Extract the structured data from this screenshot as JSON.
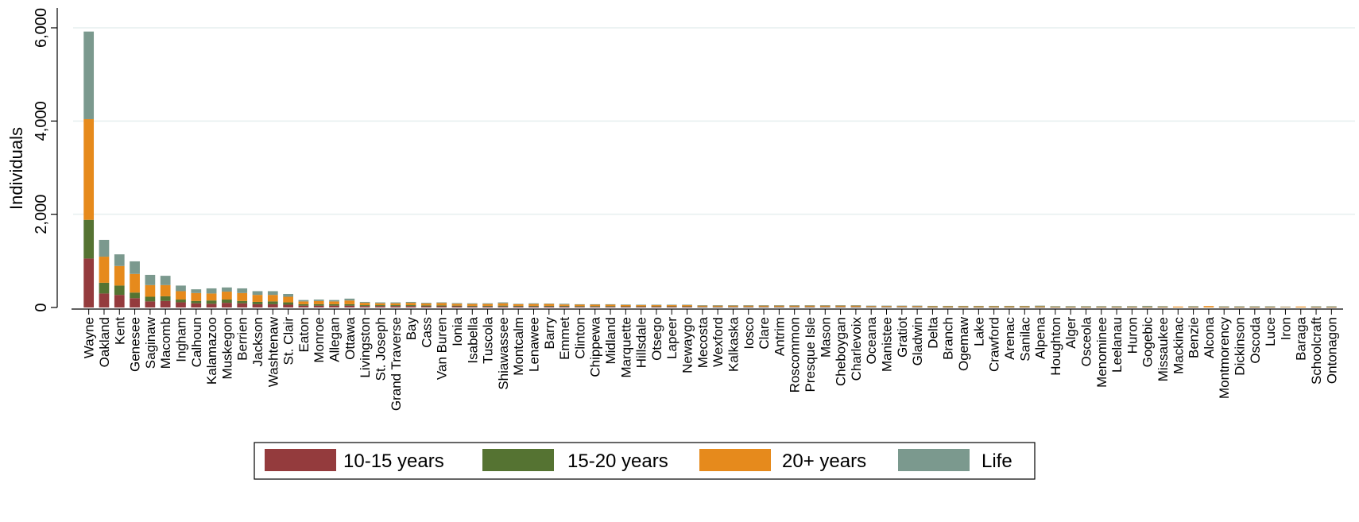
{
  "chart_data": {
    "type": "bar",
    "stacked": true,
    "title": "",
    "xlabel": "",
    "ylabel": "Individuals",
    "ylim": [
      0,
      6000
    ],
    "yticks": [
      0,
      2000,
      4000,
      6000
    ],
    "ytick_labels": [
      "0",
      "2,000",
      "4,000",
      "6,000"
    ],
    "grid": true,
    "legend_position": "bottom",
    "categories": [
      "Wayne",
      "Oakland",
      "Kent",
      "Genesee",
      "Saginaw",
      "Macomb",
      "Ingham",
      "Calhoun",
      "Kalamazoo",
      "Muskegon",
      "Berrien",
      "Jackson",
      "Washtenaw",
      "St. Clair",
      "Eaton",
      "Monroe",
      "Allegan",
      "Ottawa",
      "Livingston",
      "St. Joseph",
      "Grand Traverse",
      "Bay",
      "Cass",
      "Van Buren",
      "Ionia",
      "Isabella",
      "Tuscola",
      "Shiawassee",
      "Montcalm",
      "Lenawee",
      "Barry",
      "Emmet",
      "Clinton",
      "Chippewa",
      "Midland",
      "Marquette",
      "Hillsdale",
      "Otsego",
      "Lapeer",
      "Newaygo",
      "Mecosta",
      "Wexford",
      "Kalkaska",
      "Iosco",
      "Clare",
      "Antrim",
      "Roscommon",
      "Presque Isle",
      "Mason",
      "Cheboygan",
      "Charlevoix",
      "Oceana",
      "Manistee",
      "Gratiot",
      "Gladwin",
      "Delta",
      "Branch",
      "Ogemaw",
      "Lake",
      "Crawford",
      "Arenac",
      "Sanilac",
      "Alpena",
      "Houghton",
      "Alger",
      "Osceola",
      "Menominee",
      "Leelanau",
      "Huron",
      "Gogebic",
      "Missaukee",
      "Mackinac",
      "Benzie",
      "Alcona",
      "Montmorency",
      "Dickinson",
      "Oscoda",
      "Luce",
      "Iron",
      "Baraga",
      "Schoolcraft",
      "Ontonagon"
    ],
    "series": [
      {
        "name": "10-15 years",
        "color": "#943b3d",
        "values": [
          1050,
          300,
          270,
          200,
          130,
          140,
          110,
          90,
          80,
          100,
          90,
          70,
          70,
          60,
          40,
          40,
          40,
          40,
          30,
          30,
          30,
          30,
          25,
          25,
          25,
          20,
          20,
          20,
          20,
          20,
          20,
          20,
          15,
          15,
          15,
          15,
          15,
          15,
          15,
          15,
          10,
          10,
          10,
          10,
          10,
          10,
          10,
          10,
          10,
          10,
          10,
          10,
          10,
          10,
          10,
          5,
          5,
          5,
          5,
          5,
          5,
          5,
          5,
          5,
          5,
          5,
          5,
          5,
          5,
          5,
          5,
          0,
          5,
          0,
          5,
          5,
          5,
          5,
          0,
          0,
          5,
          5
        ]
      },
      {
        "name": "15-20 years",
        "color": "#557332",
        "values": [
          830,
          230,
          200,
          120,
          100,
          100,
          60,
          50,
          70,
          70,
          50,
          50,
          60,
          50,
          30,
          30,
          30,
          30,
          20,
          20,
          20,
          20,
          20,
          20,
          15,
          15,
          15,
          20,
          15,
          15,
          15,
          15,
          15,
          15,
          15,
          10,
          10,
          10,
          10,
          10,
          10,
          10,
          10,
          10,
          10,
          10,
          10,
          10,
          10,
          10,
          10,
          5,
          5,
          5,
          5,
          5,
          5,
          5,
          5,
          5,
          5,
          5,
          5,
          5,
          5,
          5,
          5,
          5,
          5,
          5,
          5,
          0,
          5,
          0,
          5,
          5,
          5,
          5,
          0,
          0,
          5,
          5
        ]
      },
      {
        "name": "20+ years",
        "color": "#e68a1c",
        "values": [
          2160,
          560,
          420,
          400,
          250,
          240,
          180,
          170,
          150,
          170,
          170,
          150,
          140,
          120,
          60,
          70,
          60,
          80,
          50,
          40,
          40,
          50,
          40,
          50,
          40,
          40,
          40,
          50,
          35,
          40,
          40,
          30,
          30,
          30,
          30,
          30,
          25,
          25,
          25,
          25,
          20,
          20,
          20,
          20,
          20,
          20,
          20,
          20,
          20,
          20,
          20,
          15,
          15,
          15,
          15,
          15,
          15,
          15,
          15,
          15,
          15,
          15,
          15,
          10,
          10,
          10,
          10,
          10,
          10,
          10,
          10,
          20,
          10,
          30,
          10,
          10,
          10,
          10,
          10,
          20,
          10,
          10
        ]
      },
      {
        "name": "Life",
        "color": "#7b998e",
        "values": [
          1880,
          360,
          250,
          270,
          220,
          200,
          120,
          80,
          110,
          90,
          100,
          80,
          80,
          60,
          30,
          30,
          30,
          40,
          20,
          20,
          20,
          20,
          15,
          15,
          15,
          15,
          15,
          20,
          10,
          15,
          10,
          15,
          10,
          10,
          10,
          10,
          10,
          10,
          10,
          10,
          10,
          10,
          10,
          10,
          10,
          10,
          10,
          10,
          10,
          10,
          10,
          10,
          10,
          10,
          10,
          10,
          10,
          10,
          10,
          10,
          10,
          10,
          15,
          10,
          10,
          10,
          10,
          10,
          10,
          15,
          10,
          0,
          10,
          0,
          5,
          5,
          5,
          5,
          10,
          0,
          5,
          5
        ]
      }
    ]
  }
}
